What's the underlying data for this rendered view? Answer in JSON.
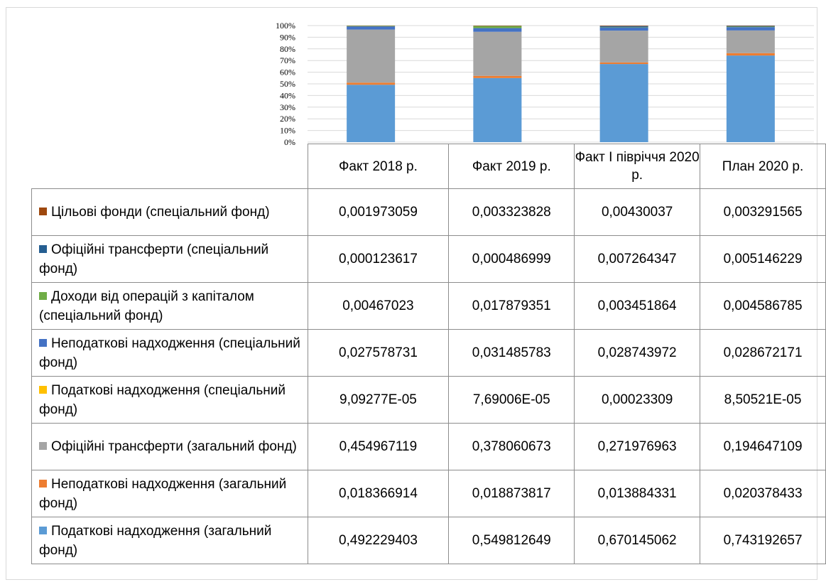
{
  "chart_data": {
    "type": "bar",
    "stacked": true,
    "percent": true,
    "categories": [
      "Факт 2018 р.",
      "Факт 2019 р.",
      "Факт І півріччя 2020 р.",
      "План 2020 р."
    ],
    "y_ticks": [
      "0%",
      "10%",
      "20%",
      "30%",
      "40%",
      "50%",
      "60%",
      "70%",
      "80%",
      "90%",
      "100%"
    ],
    "ylim": [
      0,
      1
    ],
    "grid": true,
    "legend_placement": "data-table",
    "series": [
      {
        "name": "Податкові надходження (загальний фонд)",
        "color": "#5b9bd5",
        "values": [
          0.492229403,
          0.549812649,
          0.670145062,
          0.743192657
        ],
        "table_values": [
          "0,492229403",
          "0,549812649",
          "0,670145062",
          "0,743192657"
        ]
      },
      {
        "name": "Неподаткові надходження (загальний фонд)",
        "color": "#ed7d31",
        "values": [
          0.018366914,
          0.018873817,
          0.013884331,
          0.020378433
        ],
        "table_values": [
          "0,018366914",
          "0,018873817",
          "0,013884331",
          "0,020378433"
        ]
      },
      {
        "name": "Офіційні трансферти (загальний фонд)",
        "color": "#a5a5a5",
        "values": [
          0.454967119,
          0.378060673,
          0.271976963,
          0.194647109
        ],
        "table_values": [
          "0,454967119",
          "0,378060673",
          "0,271976963",
          "0,194647109"
        ]
      },
      {
        "name": "Податкові надходження (спеціальний фонд)",
        "color": "#ffc000",
        "values": [
          9.09277e-05,
          7.69006e-05,
          0.00023309,
          8.50521e-05
        ],
        "table_values": [
          "9,09277E-05",
          "7,69006E-05",
          "0,00023309",
          "8,50521E-05"
        ]
      },
      {
        "name": "Неподаткові надходження (спеціальний фонд)",
        "color": "#4472c4",
        "values": [
          0.027578731,
          0.031485783,
          0.028743972,
          0.028672171
        ],
        "table_values": [
          "0,027578731",
          "0,031485783",
          "0,028743972",
          "0,028672171"
        ]
      },
      {
        "name": "Доходи від операцій з капіталом (спеціальний фонд)",
        "color": "#70ad47",
        "values": [
          0.00467023,
          0.017879351,
          0.003451864,
          0.004586785
        ],
        "table_values": [
          "0,00467023",
          "0,017879351",
          "0,003451864",
          "0,004586785"
        ]
      },
      {
        "name": "Офіційні трансферти (спеціальний фонд)",
        "color": "#255e91",
        "values": [
          0.000123617,
          0.000486999,
          0.007264347,
          0.005146229
        ],
        "table_values": [
          "0,000123617",
          "0,000486999",
          "0,007264347",
          "0,005146229"
        ]
      },
      {
        "name": "Цільові фонди (спеціальний фонд)",
        "color": "#9e480e",
        "values": [
          0.001973059,
          0.003323828,
          0.00430037,
          0.003291565
        ],
        "table_values": [
          "0,001973059",
          "0,003323828",
          "0,00430037",
          "0,003291565"
        ]
      }
    ]
  }
}
